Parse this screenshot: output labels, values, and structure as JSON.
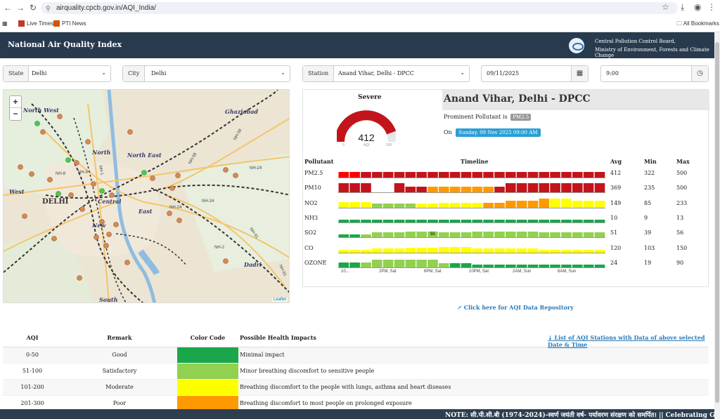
{
  "browser": {
    "url": "airquality.cpcb.gov.in/AQI_India/",
    "bookmarks": [
      {
        "label": "Live Times",
        "color": "#c0392b"
      },
      {
        "label": "PTI News",
        "color": "#d35400"
      }
    ],
    "all_bookmarks": "All Bookmarks"
  },
  "header": {
    "title": "National Air Quality Index",
    "org_line1": "Central Pollution Control Board,",
    "org_line2": "Ministry of Environment, Forests and Climate Change"
  },
  "filters": {
    "state_label": "State",
    "state_value": "Delhi",
    "city_label": "City",
    "city_value": "Delhi",
    "station_label": "Station",
    "station_value": "Anand Vihar, Delhi - DPCC",
    "date_value": "09/11/2025",
    "time_value": "9:00"
  },
  "map": {
    "labels": [
      "North West",
      "Ghaziabad",
      "North",
      "North East",
      "West",
      "DELHI",
      "Central",
      "East",
      "New",
      "Dadri",
      "South",
      "NH-24",
      "NH-58",
      "NH-9",
      "NH-91",
      "NH-8",
      "NH-2",
      "NH-1"
    ],
    "zoom_in": "+",
    "zoom_out": "−",
    "attribution": "Leaflet"
  },
  "aqi_summary": {
    "category": "Severe",
    "value": "412",
    "gauge_min": "0",
    "gauge_mid": "AQI",
    "gauge_max": "500",
    "station_name": "Anand Vihar, Delhi - DPCC",
    "prominent_label": "Prominent Pollutant is",
    "prominent_pollutant": "PM2.5",
    "on_label": "On",
    "datetime": "Sunday, 09 Nov 2025 09:00 AM"
  },
  "pollutant_table": {
    "headers": {
      "pollutant": "Pollutant",
      "timeline": "Timeline",
      "avg": "Avg",
      "min": "Min",
      "max": "Max"
    },
    "rows": [
      {
        "name": "PM2.5",
        "avg": "412",
        "min": "322",
        "max": "500"
      },
      {
        "name": "PM10",
        "avg": "369",
        "min": "235",
        "max": "500"
      },
      {
        "name": "NO2",
        "avg": "149",
        "min": "85",
        "max": "233"
      },
      {
        "name": "NH3",
        "avg": "10",
        "min": "9",
        "max": "13"
      },
      {
        "name": "SO2",
        "avg": "51",
        "min": "39",
        "max": "56"
      },
      {
        "name": "CO",
        "avg": "120",
        "min": "103",
        "max": "150"
      },
      {
        "name": "OZONE",
        "avg": "24",
        "min": "19",
        "max": "90"
      }
    ],
    "timeline_axis": [
      "10...",
      "2PM, Sat",
      "6PM, Sat",
      "10PM, Sat",
      "2AM, Sun",
      "6AM, Sun"
    ],
    "so2_tooltip": "55"
  },
  "repo_link": "Click here for AQI Data Repository",
  "station_list_link": "List of AQI Stations with Data of above selected Date & Time",
  "aqi_legend": {
    "headers": {
      "aqi": "AQI",
      "remark": "Remark",
      "color": "Color Code",
      "impact": "Possible Health Impacts"
    },
    "rows": [
      {
        "range": "0-50",
        "remark": "Good",
        "color": "#1aa64a",
        "impact": "Minimal impact"
      },
      {
        "range": "51-100",
        "remark": "Satisfactory",
        "color": "#92d050",
        "impact": "Minor breathing discomfort to sensitive people"
      },
      {
        "range": "101-200",
        "remark": "Moderate",
        "color": "#ffff00",
        "impact": "Breathing discomfort to the people with lungs, asthma and heart diseases"
      },
      {
        "range": "201-300",
        "remark": "Poor",
        "color": "#ff9900",
        "impact": "Breathing discomfort to most people on prolonged exposure"
      }
    ]
  },
  "ticker": "NOTE: सी.पी.सी.बी (1974-2024)-स्वर्ण जयंती वर्ष- पर्यावरण संरक्षण को समर्पित। || Celebrating Golden"
}
